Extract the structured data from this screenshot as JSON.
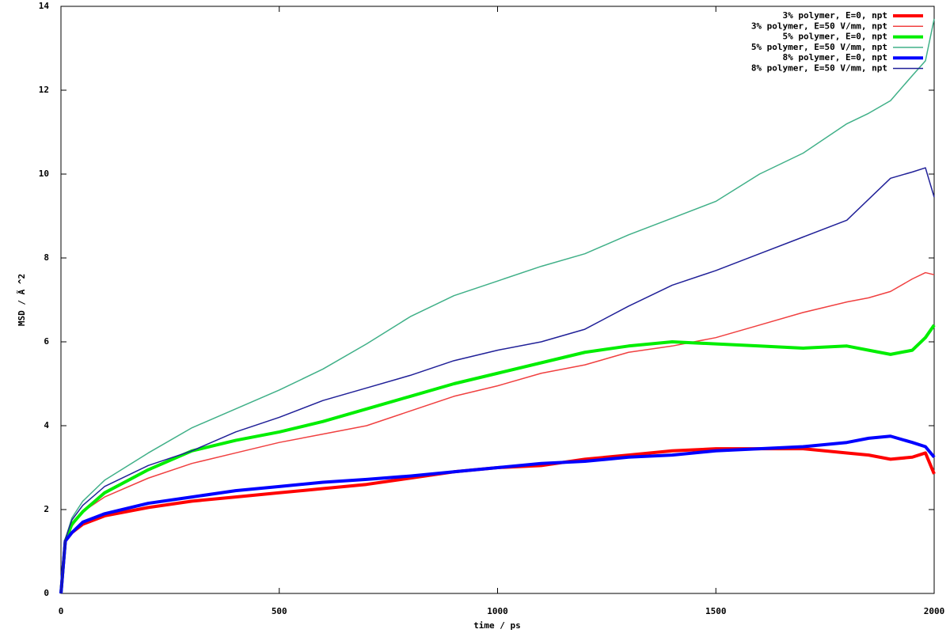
{
  "chart_data": {
    "type": "line",
    "xlabel": "time / ps",
    "ylabel": "MSD / Ã ^2",
    "x": [
      0,
      10,
      25,
      50,
      100,
      200,
      300,
      400,
      500,
      600,
      700,
      800,
      900,
      1000,
      1100,
      1200,
      1300,
      1400,
      1500,
      1600,
      1700,
      1800,
      1850,
      1900,
      1950,
      1980,
      2000
    ],
    "xlim": [
      0,
      2000
    ],
    "xticks": [
      0,
      500,
      1000,
      1500,
      2000
    ],
    "ylim": [
      0,
      14
    ],
    "yticks": [
      0,
      2,
      4,
      6,
      8,
      10,
      12,
      14
    ],
    "legend": "top-right",
    "series": [
      {
        "name": "3% polymer, E=0, npt",
        "color": "#ff0000",
        "width": 4,
        "values": [
          0,
          1.25,
          1.45,
          1.65,
          1.85,
          2.05,
          2.2,
          2.3,
          2.4,
          2.5,
          2.6,
          2.75,
          2.9,
          3.0,
          3.05,
          3.2,
          3.3,
          3.4,
          3.45,
          3.45,
          3.45,
          3.35,
          3.3,
          3.2,
          3.25,
          3.35,
          2.85
        ]
      },
      {
        "name": "3% polymer, E=50 V/mm, npt",
        "color": "#f04040",
        "width": 1.5,
        "values": [
          0,
          1.2,
          1.6,
          1.95,
          2.3,
          2.75,
          3.1,
          3.35,
          3.6,
          3.8,
          4.0,
          4.35,
          4.7,
          4.95,
          5.25,
          5.45,
          5.75,
          5.9,
          6.1,
          6.4,
          6.7,
          6.95,
          7.05,
          7.2,
          7.5,
          7.65,
          7.6
        ]
      },
      {
        "name": "5% polymer, E=0, npt",
        "color": "#00ee00",
        "width": 4,
        "values": [
          0,
          1.25,
          1.65,
          1.95,
          2.4,
          2.95,
          3.4,
          3.65,
          3.85,
          4.1,
          4.4,
          4.7,
          5.0,
          5.25,
          5.5,
          5.75,
          5.9,
          6.0,
          5.95,
          5.9,
          5.85,
          5.9,
          5.8,
          5.7,
          5.8,
          6.1,
          6.4
        ]
      },
      {
        "name": "5% polymer, E=50 V/mm, npt",
        "color": "#40b088",
        "width": 1.5,
        "values": [
          0,
          1.3,
          1.8,
          2.2,
          2.7,
          3.35,
          3.95,
          4.4,
          4.85,
          5.35,
          5.95,
          6.6,
          7.1,
          7.45,
          7.8,
          8.1,
          8.55,
          8.95,
          9.35,
          10.0,
          10.5,
          11.2,
          11.45,
          11.75,
          12.35,
          12.7,
          13.7
        ]
      },
      {
        "name": "8% polymer, E=0, npt",
        "color": "#0000ff",
        "width": 4,
        "values": [
          0,
          1.25,
          1.45,
          1.7,
          1.9,
          2.15,
          2.3,
          2.45,
          2.55,
          2.65,
          2.72,
          2.8,
          2.9,
          3.0,
          3.1,
          3.15,
          3.25,
          3.3,
          3.4,
          3.45,
          3.5,
          3.6,
          3.7,
          3.75,
          3.6,
          3.5,
          3.25
        ]
      },
      {
        "name": "8% polymer, E=50 V/mm, npt",
        "color": "#202098",
        "width": 1.5,
        "values": [
          0,
          1.3,
          1.75,
          2.1,
          2.55,
          3.05,
          3.4,
          3.85,
          4.2,
          4.6,
          4.9,
          5.2,
          5.55,
          5.8,
          6.0,
          6.3,
          6.85,
          7.35,
          7.7,
          8.1,
          8.5,
          8.9,
          9.4,
          9.9,
          10.05,
          10.15,
          9.45
        ]
      }
    ]
  }
}
